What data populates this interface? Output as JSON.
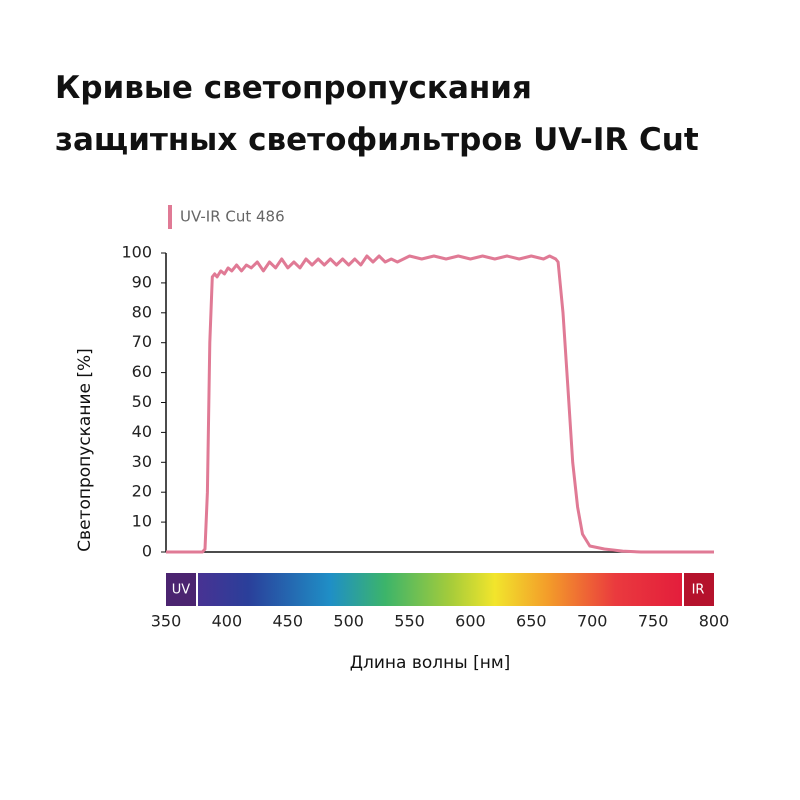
{
  "chart_data": {
    "type": "line",
    "title": [
      "Кривые светопропускания",
      "защитных светофильтров UV-IR Cut"
    ],
    "xlabel": "Длина волны  [нм]",
    "ylabel": "Светопропускание  [%]",
    "spectrum": {
      "left_label": "UV",
      "right_label": "IR"
    },
    "xlim": [
      350,
      800
    ],
    "xticks": [
      350,
      400,
      450,
      500,
      550,
      600,
      650,
      700,
      750,
      800
    ],
    "ylim": [
      0,
      100
    ],
    "yticks": [
      0,
      10,
      20,
      30,
      40,
      50,
      60,
      70,
      80,
      90,
      100
    ],
    "x": [
      350,
      380,
      382,
      384,
      386,
      388,
      390,
      392,
      395,
      398,
      401,
      404,
      408,
      412,
      416,
      420,
      425,
      430,
      435,
      440,
      445,
      450,
      455,
      460,
      465,
      470,
      475,
      480,
      485,
      490,
      495,
      500,
      505,
      510,
      515,
      520,
      525,
      530,
      535,
      540,
      550,
      560,
      570,
      580,
      590,
      600,
      610,
      620,
      630,
      640,
      650,
      660,
      665,
      670,
      672,
      676,
      680,
      684,
      688,
      692,
      698,
      710,
      725,
      740,
      800
    ],
    "series": [
      {
        "name": "UV-IR Cut 486",
        "color": "#e07a95",
        "values": [
          0,
          0,
          1,
          20,
          70,
          92,
          93,
          92,
          94,
          93,
          95,
          94,
          96,
          94,
          96,
          95,
          97,
          94,
          97,
          95,
          98,
          95,
          97,
          95,
          98,
          96,
          98,
          96,
          98,
          96,
          98,
          96,
          98,
          96,
          99,
          97,
          99,
          97,
          98,
          97,
          99,
          98,
          99,
          98,
          99,
          98,
          99,
          98,
          99,
          98,
          99,
          98,
          99,
          98,
          97,
          80,
          55,
          30,
          15,
          6,
          2,
          1,
          0.3,
          0,
          0
        ]
      }
    ]
  }
}
